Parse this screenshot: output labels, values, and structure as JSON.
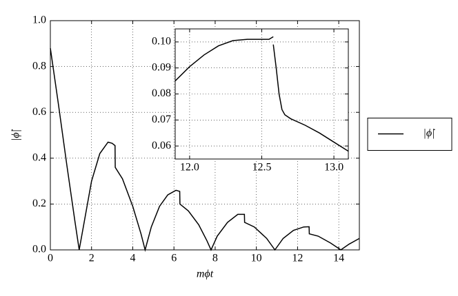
{
  "chart_data": [
    {
      "type": "line",
      "xlabel": "mϕt",
      "ylabel": "|ϕ̇|",
      "grid": true,
      "legend": "right",
      "xlim": [
        0,
        15
      ],
      "ylim": [
        0,
        1
      ],
      "xticks": [
        0,
        2,
        4,
        6,
        8,
        10,
        12,
        14
      ],
      "yticks": [
        {
          "value": 0,
          "label": "0.0"
        },
        {
          "value": 0.2,
          "label": "0.2"
        },
        {
          "value": 0.4,
          "label": "0.4"
        },
        {
          "value": 0.6,
          "label": "0.6"
        },
        {
          "value": 0.8,
          "label": "0.8"
        },
        {
          "value": 1,
          "label": "1.0"
        }
      ],
      "x": [
        0,
        0.4,
        0.8,
        1.2,
        1.4,
        1.6,
        2.0,
        2.4,
        2.8,
        3.0,
        3.14,
        3.15,
        3.5,
        4.0,
        4.4,
        4.6,
        4.9,
        5.3,
        5.7,
        6.1,
        6.28,
        6.29,
        6.7,
        7.2,
        7.6,
        7.8,
        8.1,
        8.6,
        9.1,
        9.42,
        9.43,
        9.9,
        10.5,
        10.9,
        11.3,
        11.8,
        12.3,
        12.56,
        12.57,
        13.0,
        13.6,
        14.1,
        14.5,
        15
      ],
      "series": [
        {
          "name": "|ϕ̇|",
          "color": "#000000",
          "values": [
            0.88,
            0.63,
            0.37,
            0.12,
            0.0,
            0.1,
            0.3,
            0.42,
            0.47,
            0.465,
            0.455,
            0.36,
            0.31,
            0.19,
            0.07,
            0.0,
            0.1,
            0.19,
            0.24,
            0.26,
            0.255,
            0.2,
            0.17,
            0.11,
            0.04,
            0.0,
            0.06,
            0.12,
            0.155,
            0.155,
            0.12,
            0.1,
            0.05,
            0.0,
            0.05,
            0.085,
            0.1,
            0.101,
            0.07,
            0.06,
            0.03,
            0.0,
            0.025,
            0.05
          ]
        }
      ]
    },
    {
      "type": "line",
      "grid": true,
      "xlim": [
        11.9,
        13.1
      ],
      "ylim": [
        0.055,
        0.105
      ],
      "xticks": [
        {
          "value": 12,
          "label": "12.0"
        },
        12.5,
        {
          "value": 13,
          "label": "13.0"
        }
      ],
      "yticks": [
        0.06,
        0.07,
        0.08,
        0.09,
        {
          "value": 0.1,
          "label": "0.10"
        }
      ],
      "x": [
        11.9,
        12.0,
        12.1,
        12.2,
        12.3,
        12.4,
        12.5,
        12.55,
        12.58,
        12.58,
        12.58,
        12.6,
        12.62,
        12.64,
        12.66,
        12.7,
        12.8,
        12.9,
        13.0,
        13.1
      ],
      "series": [
        {
          "color": "#000000",
          "values": [
            0.085,
            0.0905,
            0.095,
            0.0985,
            0.1005,
            0.101,
            0.101,
            0.101,
            0.102,
            null,
            0.099,
            0.09,
            0.08,
            0.074,
            0.072,
            0.0705,
            0.068,
            0.065,
            0.0615,
            0.058
          ]
        }
      ]
    }
  ]
}
